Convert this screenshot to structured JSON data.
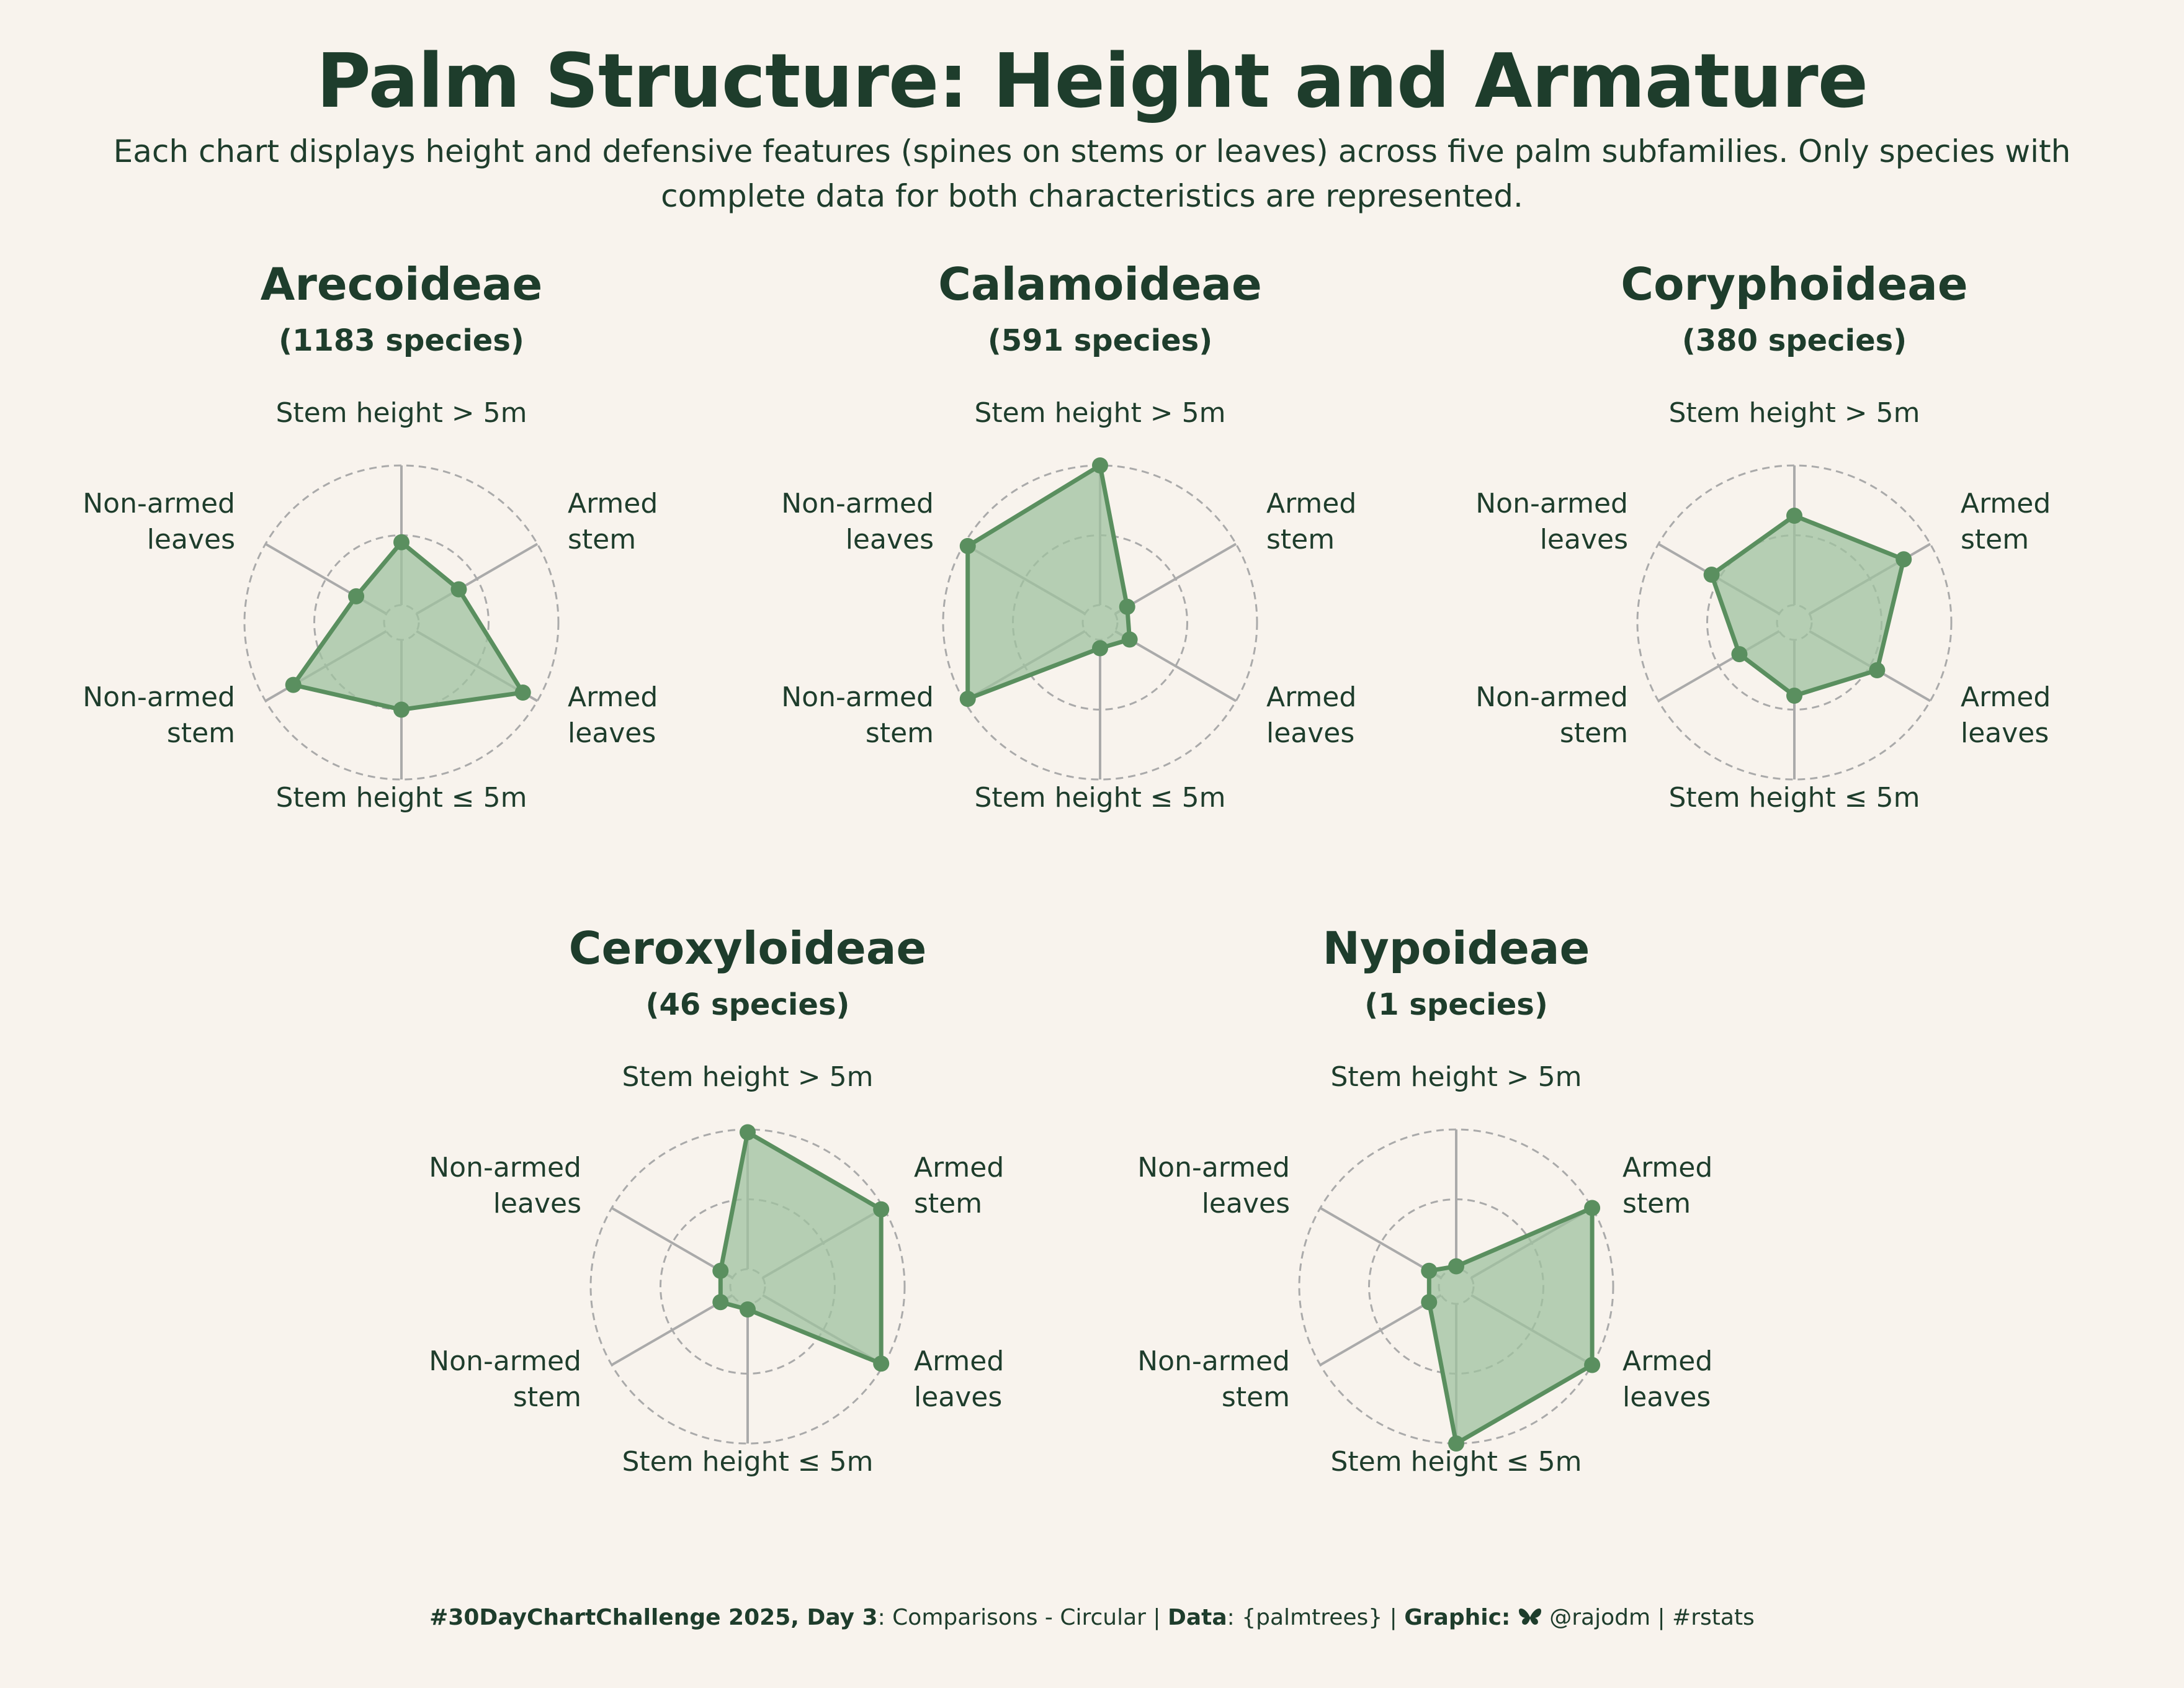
{
  "page": {
    "title": "Palm Structure: Height and Armature",
    "subtitle": "Each chart displays height and defensive features (spines on stems or leaves) across five palm subfamilies. Only species with complete data for both characteristics are represented."
  },
  "caption": {
    "challenge": "#30DayChartChallenge 2025, Day 3",
    "theme": ": Comparisons - Circular | ",
    "data_label": "Data",
    "data_value": ": {palmtrees} | ",
    "graphic_label": "Graphic:",
    "handle": "@rajodm | #rstats"
  },
  "colors": {
    "background": "#f8f3ed",
    "text": "#1e3d2c",
    "line": "#5a8f5f",
    "fill": "#9fc29f",
    "grid": "#aaaaaa"
  },
  "chart_data": [
    {
      "type": "radar",
      "title": "Arecoideae",
      "count_label": "(1183 species)",
      "axes": [
        "Stem height > 5m",
        "Armed stem",
        "Armed leaves",
        "Stem height ≤ 5m",
        "Non-armed stem",
        "Non-armed leaves"
      ],
      "values": [
        0.45,
        0.35,
        0.88,
        0.5,
        0.77,
        0.25
      ],
      "ylim": [
        0,
        1
      ]
    },
    {
      "type": "radar",
      "title": "Calamoideae",
      "count_label": "(591 species)",
      "axes": [
        "Stem height > 5m",
        "Armed stem",
        "Armed leaves",
        "Stem height ≤ 5m",
        "Non-armed stem",
        "Non-armed leaves"
      ],
      "values": [
        1.0,
        0.1,
        0.12,
        0.06,
        0.97,
        0.97
      ],
      "ylim": [
        0,
        1
      ]
    },
    {
      "type": "radar",
      "title": "Coryphoideae",
      "count_label": "(380 species)",
      "axes": [
        "Stem height > 5m",
        "Armed stem",
        "Armed leaves",
        "Stem height ≤ 5m",
        "Non-armed stem",
        "Non-armed leaves"
      ],
      "values": [
        0.64,
        0.78,
        0.56,
        0.4,
        0.33,
        0.56
      ],
      "ylim": [
        0,
        1
      ]
    },
    {
      "type": "radar",
      "title": "Ceroxyloideae",
      "count_label": "(46 species)",
      "axes": [
        "Stem height > 5m",
        "Armed stem",
        "Armed leaves",
        "Stem height ≤ 5m",
        "Non-armed stem",
        "Non-armed leaves"
      ],
      "values": [
        0.98,
        0.98,
        0.98,
        0.04,
        0.1,
        0.1
      ],
      "ylim": [
        0,
        1
      ]
    },
    {
      "type": "radar",
      "title": "Nypoideae",
      "count_label": "(1 species)",
      "axes": [
        "Stem height > 5m",
        "Armed stem",
        "Armed leaves",
        "Stem height ≤ 5m",
        "Non-armed stem",
        "Non-armed leaves"
      ],
      "values": [
        0.02,
        1.0,
        1.0,
        1.0,
        0.1,
        0.1
      ],
      "ylim": [
        0,
        1
      ]
    }
  ]
}
